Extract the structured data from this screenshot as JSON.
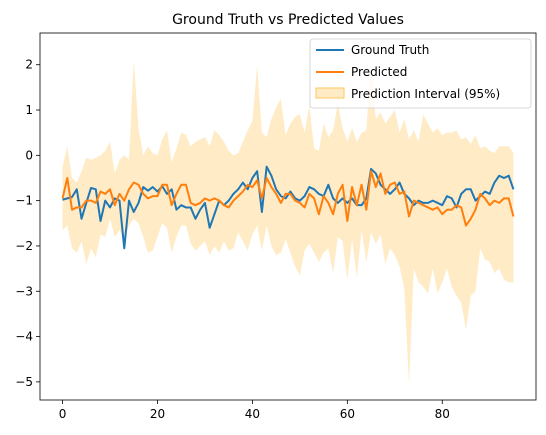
{
  "chart_data": {
    "type": "line",
    "title": "Ground Truth vs Predicted Values",
    "xlabel": "",
    "ylabel": "",
    "xlim": [
      -4.75,
      99.75
    ],
    "ylim": [
      -5.4,
      2.7
    ],
    "x_ticks": [
      0,
      20,
      40,
      60,
      80
    ],
    "y_ticks": [
      -5,
      -4,
      -3,
      -2,
      -1,
      0,
      1,
      2
    ],
    "y_tick_labels": [
      "−5",
      "−4",
      "−3",
      "−2",
      "−1",
      "0",
      "1",
      "2"
    ],
    "grid": false,
    "legend_position": "upper right",
    "x": [
      0,
      1,
      2,
      3,
      4,
      5,
      6,
      7,
      8,
      9,
      10,
      11,
      12,
      13,
      14,
      15,
      16,
      17,
      18,
      19,
      20,
      21,
      22,
      23,
      24,
      25,
      26,
      27,
      28,
      29,
      30,
      31,
      32,
      33,
      34,
      35,
      36,
      37,
      38,
      39,
      40,
      41,
      42,
      43,
      44,
      45,
      46,
      47,
      48,
      49,
      50,
      51,
      52,
      53,
      54,
      55,
      56,
      57,
      58,
      59,
      60,
      61,
      62,
      63,
      64,
      65,
      66,
      67,
      68,
      69,
      70,
      71,
      72,
      73,
      74,
      75,
      76,
      77,
      78,
      79,
      80,
      81,
      82,
      83,
      84,
      85,
      86,
      87,
      88,
      89,
      90,
      91,
      92,
      93,
      94,
      95
    ],
    "series": [
      {
        "name": "Ground Truth",
        "color": "#1f77b4",
        "values": [
          -0.98,
          -0.95,
          -0.92,
          -0.75,
          -1.4,
          -1.05,
          -0.72,
          -0.75,
          -1.45,
          -1.0,
          -1.15,
          -0.95,
          -1.0,
          -2.05,
          -1.0,
          -1.25,
          -1.05,
          -0.7,
          -0.78,
          -0.7,
          -0.8,
          -0.68,
          -0.85,
          -0.75,
          -1.2,
          -1.1,
          -1.15,
          -1.15,
          -1.4,
          -1.2,
          -1.05,
          -1.6,
          -1.3,
          -1.0,
          -1.1,
          -1.0,
          -0.85,
          -0.75,
          -0.6,
          -0.75,
          -0.5,
          -0.35,
          -1.25,
          -0.25,
          -0.45,
          -0.75,
          -0.9,
          -0.95,
          -0.8,
          -0.95,
          -1.0,
          -0.9,
          -0.7,
          -0.75,
          -0.85,
          -0.9,
          -0.65,
          -0.95,
          -1.05,
          -0.95,
          -1.05,
          -0.95,
          -1.1,
          -1.1,
          -0.95,
          -0.3,
          -0.4,
          -0.65,
          -0.75,
          -0.85,
          -0.75,
          -0.6,
          -0.85,
          -0.95,
          -1.1,
          -1.0,
          -1.05,
          -1.05,
          -1.0,
          -1.05,
          -1.1,
          -0.9,
          -0.95,
          -1.15,
          -0.85,
          -0.75,
          -0.75,
          -1.0,
          -0.9,
          -0.8,
          -0.85,
          -0.6,
          -0.45,
          -0.5,
          -0.45,
          -0.75
        ]
      },
      {
        "name": "Predicted",
        "color": "#ff7f0e",
        "values": [
          -0.95,
          -0.5,
          -1.2,
          -1.15,
          -1.15,
          -1.0,
          -1.0,
          -1.05,
          -0.8,
          -0.85,
          -0.75,
          -1.1,
          -0.85,
          -1.0,
          -0.75,
          -0.6,
          -0.65,
          -0.85,
          -0.95,
          -0.9,
          -0.9,
          -0.65,
          -0.65,
          -1.1,
          -0.85,
          -0.65,
          -0.65,
          -1.05,
          -1.1,
          -1.05,
          -0.95,
          -1.0,
          -0.95,
          -1.0,
          -1.1,
          -1.15,
          -1.0,
          -0.9,
          -0.8,
          -0.65,
          -0.7,
          -0.55,
          -0.95,
          -0.5,
          -0.7,
          -0.85,
          -1.05,
          -0.85,
          -0.85,
          -1.0,
          -1.05,
          -1.15,
          -0.85,
          -0.95,
          -1.3,
          -0.9,
          -1.05,
          -1.3,
          -0.85,
          -0.65,
          -1.45,
          -0.7,
          -1.1,
          -0.65,
          -1.2,
          -0.35,
          -0.7,
          -0.4,
          -0.85,
          -0.65,
          -0.6,
          -0.85,
          -0.8,
          -1.35,
          -1.0,
          -1.05,
          -1.1,
          -1.15,
          -1.2,
          -1.15,
          -1.3,
          -1.2,
          -1.2,
          -1.1,
          -1.15,
          -1.55,
          -1.4,
          -1.2,
          -0.85,
          -0.95,
          -1.1,
          -1.0,
          -1.05,
          -0.95,
          -0.95,
          -1.35
        ]
      }
    ],
    "band": {
      "name": "Prediction Interval (95%)",
      "color": "#ffc65c",
      "opacity": 0.35,
      "lower": [
        -1.65,
        -1.55,
        -2.05,
        -2.15,
        -1.9,
        -2.4,
        -2.05,
        -2.25,
        -1.75,
        -1.8,
        -1.4,
        -1.8,
        -1.65,
        -1.85,
        -1.55,
        -1.4,
        -1.5,
        -1.8,
        -2.15,
        -2.1,
        -1.8,
        -1.5,
        -1.6,
        -2.15,
        -1.8,
        -1.55,
        -1.55,
        -1.95,
        -2.1,
        -2.0,
        -1.9,
        -2.2,
        -2.0,
        -2.15,
        -1.9,
        -2.1,
        -2.05,
        -1.7,
        -1.9,
        -2.1,
        -1.75,
        -1.55,
        -2.1,
        -1.55,
        -2.0,
        -2.2,
        -2.15,
        -1.85,
        -2.15,
        -2.45,
        -2.65,
        -2.1,
        -1.95,
        -2.15,
        -2.35,
        -2.15,
        -2.05,
        -2.6,
        -1.8,
        -1.9,
        -2.75,
        -1.85,
        -2.7,
        -1.65,
        -2.35,
        -1.7,
        -1.95,
        -1.75,
        -2.4,
        -2.05,
        -2.2,
        -2.45,
        -2.95,
        -5.05,
        -2.5,
        -2.8,
        -2.9,
        -3.05,
        -2.5,
        -3.05,
        -2.8,
        -2.5,
        -2.9,
        -3.1,
        -3.25,
        -3.85,
        -3.1,
        -3.0,
        -2.05,
        -2.3,
        -2.35,
        -2.6,
        -2.5,
        -2.75,
        -2.8,
        -2.8
      ],
      "upper": [
        -0.25,
        0.2,
        -0.5,
        -0.6,
        -0.35,
        -0.05,
        -0.1,
        -0.05,
        0.0,
        0.1,
        0.3,
        -0.4,
        -0.1,
        0.0,
        -0.1,
        2.1,
        0.6,
        0.0,
        0.2,
        0.05,
        0.0,
        0.35,
        0.55,
        -0.15,
        0.15,
        0.5,
        0.45,
        0.2,
        0.3,
        0.35,
        0.4,
        0.2,
        0.55,
        0.45,
        0.3,
        0.1,
        0.0,
        0.05,
        0.3,
        0.55,
        0.75,
        2.0,
        0.5,
        0.4,
        0.8,
        1.05,
        1.25,
        0.45,
        0.7,
        0.85,
        0.9,
        0.5,
        1.1,
        0.15,
        0.1,
        0.7,
        0.4,
        0.55,
        1.15,
        0.6,
        0.3,
        0.6,
        0.3,
        0.5,
        0.55,
        2.05,
        0.8,
        0.95,
        0.7,
        0.85,
        1.0,
        0.5,
        0.8,
        0.35,
        0.55,
        0.3,
        0.9,
        0.7,
        0.5,
        0.6,
        0.45,
        0.5,
        0.5,
        0.55,
        0.35,
        0.4,
        0.25,
        0.45,
        0.15,
        0.2,
        0.1,
        0.05,
        0.2,
        0.2,
        0.2,
        0.05
      ]
    }
  }
}
